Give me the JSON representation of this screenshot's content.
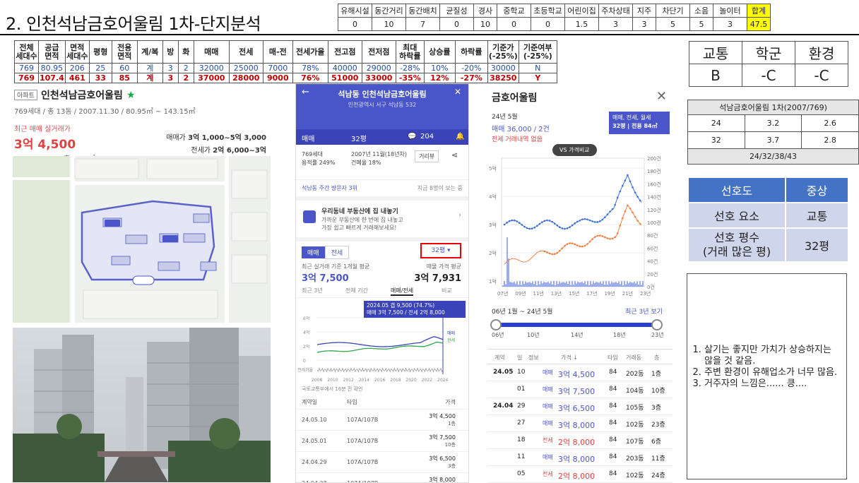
{
  "title": "2. 인천석남금호어울림 1차-단지분석",
  "score": {
    "headers": [
      "유해시설",
      "동간거리",
      "동간배치",
      "균질성",
      "경사",
      "중학교",
      "초등학교",
      "어린이집",
      "주차상태",
      "지주",
      "차단기",
      "소음",
      "놀이터",
      "합계"
    ],
    "values": [
      "0",
      "10",
      "7",
      "0",
      "10",
      "0",
      "0",
      "1.5",
      "3",
      "3",
      "5",
      "5",
      "3",
      "47.5"
    ]
  },
  "unit_table": {
    "headers": [
      "전체\n세대수",
      "공급\n면적",
      "면적\n세대수",
      "평형",
      "전용\n면적",
      "계/복",
      "방",
      "화",
      "매매",
      "전세",
      "매-전",
      "전세가율",
      "전고점",
      "전저점",
      "최대\n하락률",
      "상승률",
      "하락률",
      "기준가\n(-25%)",
      "기준여부\n(-25%)"
    ],
    "rows": [
      [
        "769",
        "80.95",
        "206",
        "25",
        "60",
        "계",
        "3",
        "2",
        "32000",
        "25000",
        "7000",
        "78%",
        "40000",
        "29000",
        "-28%",
        "10%",
        "-20%",
        "30000",
        "N"
      ],
      [
        "769",
        "107.4",
        "461",
        "33",
        "85",
        "계",
        "3",
        "2",
        "37000",
        "28000",
        "9000",
        "76%",
        "51000",
        "33000",
        "-35%",
        "12%",
        "-27%",
        "38250",
        "Y"
      ]
    ]
  },
  "grades": {
    "headers": [
      "교통",
      "학군",
      "환경"
    ],
    "values": [
      "B",
      "-C",
      "-C"
    ]
  },
  "mini": {
    "title": "석남금호어울림 1차(2007/769)",
    "rows": [
      [
        "24",
        "3.2",
        "2.6"
      ],
      [
        "32",
        "3.7",
        "2.8"
      ]
    ],
    "footer": "24/32/38/43"
  },
  "preference": {
    "label": "선호도",
    "value": "중상",
    "factor_label": "선호 요소",
    "factor_value": "교통",
    "size_label_1": "선호 평수",
    "size_label_2": "(거래 많은 평)",
    "size_value": "32평"
  },
  "notes": [
    "살기는 좋지만 가치가 상승하지는 않을 것 같음.",
    "주변 환경이 유해업소가 너무 많음.",
    "거주자의 느낌은...... 킁...."
  ],
  "listing": {
    "tag": "아파트",
    "name": "인천석남금호어울림",
    "star": "★",
    "sub": "769세대 / 총 13동 / 2007.11.30 / 80.95㎡ ~ 143.15㎡",
    "recent_label": "최근 매매 실거래가",
    "recent_price": "3억 4,500",
    "recent_date": "2024.05.10, 1층, 107㎡",
    "sale_label": "매매가",
    "sale_range": "3억 1,000~5억 3,000",
    "jeonse_label": "전세가",
    "jeonse_range": "2억 6,000~3억"
  },
  "phone": {
    "header_title": "석남동 인천석남금호어울림",
    "header_sub": "인천광역시 서구 석남동 532",
    "bar_type": "매매",
    "bar_size": "32평",
    "bar_count": "204",
    "info_1": "769세대",
    "info_2": "용적률 249%",
    "info_3": "2007년 11월(18년차)",
    "info_4": "건폐율 18%",
    "info_btn": "거리뷰",
    "visitors": "석남동 주간 방문자 3위",
    "visitors_now": "지금 8명이 보는 중",
    "ad_title": "우리동네 부동산에 집 내놓기",
    "ad_line1": "가까운 부동산에 한 번에 집 내놓고",
    "ad_line2": "가장 쉽고 빠르게 거래해보세요!",
    "tab_sale": "매매",
    "tab_jeonse": "전세",
    "size_select": "32평",
    "recent_avg_label": "최근 실거래 기준 1개월 평균",
    "recent_avg": "3억 7,500",
    "listing_avg_label": "매물 가격 평균",
    "listing_avg": "3억 7,931",
    "subtabs": [
      "최근 3년",
      "전체 기간",
      "매매/전세",
      "비교"
    ],
    "chart_tip_1": "2024.05 갭 9,500 (74.7%)",
    "chart_tip_2": "매매 3억 7,500 / 전세 2억 8,000",
    "chart_x": [
      "2008",
      "2010",
      "2012",
      "2014",
      "2016",
      "2018",
      "2020",
      "2022",
      "2024"
    ],
    "chart_y": [
      "6억",
      "4억",
      "2억",
      "0"
    ],
    "chart_legend_sale": "매매",
    "chart_legend_jeonse": "전세",
    "chart_bottom": "전세가율",
    "chart_source": "국토교통부에서 16분 전 확인",
    "list_headers": [
      "계약일",
      "타입",
      "가격"
    ],
    "list": [
      [
        "24.05.10",
        "107A/107B",
        "3억 4,500",
        "1층"
      ],
      [
        "24.05.01",
        "107A/107B",
        "3억 7,500",
        "10층"
      ],
      [
        "24.04.29",
        "107A/107B",
        "3억 6,500",
        "3층"
      ],
      [
        "24.04.27",
        "107A/107B",
        "3억 8,000",
        "23층"
      ]
    ]
  },
  "trades": {
    "title": "금호어울림",
    "date": "24년 5월",
    "deal": "매매 36,000 / 2건",
    "none": "전세 거래내역 없음",
    "badge_1": "매매, 전세, 월세",
    "badge_2": "32평 | 전용 84㎡",
    "vs": "VS 가격비교",
    "y_left": [
      "5억",
      "4억",
      "3억",
      "2억",
      "1억"
    ],
    "y_right": [
      "200건",
      "180건",
      "160건",
      "140건",
      "120건",
      "100건",
      "80건",
      "60건",
      "40건",
      "20건",
      "0건"
    ],
    "x_labels": [
      "07년",
      "09년",
      "11년",
      "13년",
      "15년",
      "17년",
      "19년",
      "21년",
      "23년"
    ],
    "range": "06년 1월 ~ 24년 5월",
    "recent": "최근 3년 보기",
    "slider_labels": [
      "06년",
      "10년",
      "14년",
      "18년",
      "23년"
    ],
    "table_headers": [
      "계약",
      "일",
      "정보",
      "가격 ↓",
      "타입",
      "거래동",
      "층"
    ],
    "rows": [
      {
        "ym": "24.05",
        "d": "10",
        "type": "매매",
        "price": "3억 4,500",
        "t": "84",
        "dong": "202동",
        "fl": "1층"
      },
      {
        "ym": "",
        "d": "01",
        "type": "매매",
        "price": "3억 7,500",
        "t": "84",
        "dong": "104동",
        "fl": "10층"
      },
      {
        "ym": "24.04",
        "d": "29",
        "type": "매매",
        "price": "3억 6,500",
        "t": "84",
        "dong": "105동",
        "fl": "3층"
      },
      {
        "ym": "",
        "d": "27",
        "type": "매매",
        "price": "3억 8,000",
        "t": "84",
        "dong": "102동",
        "fl": "23층"
      },
      {
        "ym": "",
        "d": "18",
        "type": "전세",
        "price": "2억 8,000",
        "t": "84",
        "dong": "107동",
        "fl": "6층"
      },
      {
        "ym": "",
        "d": "11",
        "type": "매매",
        "price": "3억 8,000",
        "t": "84",
        "dong": "203동",
        "fl": "11층"
      },
      {
        "ym": "",
        "d": "05",
        "type": "전세",
        "price": "2억 8,000",
        "t": "84",
        "dong": "102동",
        "fl": "24층"
      }
    ]
  },
  "colors": {
    "accent": "#4a55c9",
    "pref_header": "#4472c4",
    "pref_cell": "#cfd5ea",
    "highlight": "#ffff00",
    "sale_line": "#3b6fe0",
    "jeonse_line": "#f08040"
  }
}
